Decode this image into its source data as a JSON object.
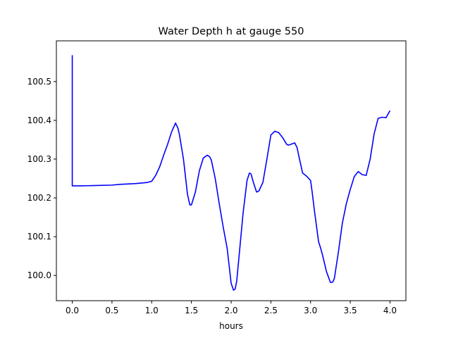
{
  "chart_data": {
    "type": "line",
    "title": "Water Depth h at gauge 550",
    "xlabel": "hours",
    "ylabel": "",
    "xlim": [
      -0.2,
      4.2
    ],
    "ylim": [
      99.935,
      100.605
    ],
    "xticks": [
      {
        "value": 0.0,
        "label": "0.0"
      },
      {
        "value": 0.5,
        "label": "0.5"
      },
      {
        "value": 1.0,
        "label": "1.0"
      },
      {
        "value": 1.5,
        "label": "1.5"
      },
      {
        "value": 2.0,
        "label": "2.0"
      },
      {
        "value": 2.5,
        "label": "2.5"
      },
      {
        "value": 3.0,
        "label": "3.0"
      },
      {
        "value": 3.5,
        "label": "3.5"
      },
      {
        "value": 4.0,
        "label": "4.0"
      }
    ],
    "yticks": [
      {
        "value": 100.0,
        "label": "100.0"
      },
      {
        "value": 100.1,
        "label": "100.1"
      },
      {
        "value": 100.2,
        "label": "100.2"
      },
      {
        "value": 100.3,
        "label": "100.3"
      },
      {
        "value": 100.4,
        "label": "100.4"
      },
      {
        "value": 100.5,
        "label": "100.5"
      }
    ],
    "grid": false,
    "series": [
      {
        "color": "#0000ff",
        "x": [
          0.0,
          0.0,
          0.005,
          0.1,
          0.3,
          0.5,
          0.6,
          0.8,
          0.95,
          1.0,
          1.05,
          1.1,
          1.15,
          1.2,
          1.25,
          1.3,
          1.33,
          1.35,
          1.4,
          1.45,
          1.48,
          1.5,
          1.55,
          1.6,
          1.65,
          1.7,
          1.73,
          1.75,
          1.8,
          1.85,
          1.9,
          1.95,
          2.0,
          2.03,
          2.05,
          2.07,
          2.1,
          2.15,
          2.2,
          2.23,
          2.25,
          2.28,
          2.32,
          2.35,
          2.4,
          2.45,
          2.5,
          2.55,
          2.6,
          2.65,
          2.7,
          2.72,
          2.75,
          2.8,
          2.83,
          2.85,
          2.9,
          2.95,
          3.0,
          3.02,
          3.05,
          3.1,
          3.13,
          3.15,
          3.2,
          3.25,
          3.28,
          3.3,
          3.35,
          3.4,
          3.45,
          3.5,
          3.55,
          3.6,
          3.65,
          3.7,
          3.75,
          3.8,
          3.85,
          3.9,
          3.95,
          4.0
        ],
        "y": [
          100.568,
          100.231,
          100.231,
          100.231,
          100.232,
          100.233,
          100.235,
          100.237,
          100.24,
          100.243,
          100.258,
          100.28,
          100.31,
          100.338,
          100.37,
          100.393,
          100.38,
          100.362,
          100.3,
          100.21,
          100.182,
          100.182,
          100.215,
          100.27,
          100.303,
          100.31,
          100.306,
          100.298,
          100.25,
          100.185,
          100.125,
          100.07,
          99.98,
          99.962,
          99.965,
          99.985,
          100.05,
          100.16,
          100.245,
          100.264,
          100.262,
          100.24,
          100.215,
          100.218,
          100.24,
          100.3,
          100.362,
          100.372,
          100.368,
          100.355,
          100.338,
          100.336,
          100.338,
          100.342,
          100.33,
          100.31,
          100.264,
          100.256,
          100.245,
          100.215,
          100.165,
          100.088,
          100.068,
          100.053,
          100.01,
          99.982,
          99.983,
          99.993,
          100.06,
          100.135,
          100.185,
          100.222,
          100.255,
          100.268,
          100.26,
          100.258,
          100.3,
          100.365,
          100.405,
          100.408,
          100.407,
          100.425
        ]
      }
    ]
  }
}
